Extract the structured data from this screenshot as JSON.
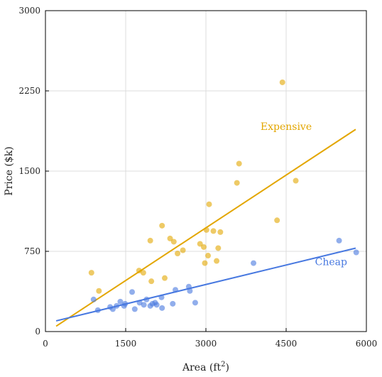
{
  "chart_data": {
    "type": "scatter",
    "xlabel": "Area (ft",
    "xlabel_sup": "2",
    "xlabel_close": ")",
    "ylabel": "Price ($k)",
    "xlim": [
      0,
      6000
    ],
    "ylim": [
      0,
      3000
    ],
    "xticks": [
      0,
      1500,
      3000,
      4500,
      6000
    ],
    "yticks": [
      0,
      750,
      1500,
      2250,
      3000
    ],
    "grid": true,
    "series": [
      {
        "name": "Expensive",
        "color": "#E3A600",
        "label_at": [
          4500,
          1885
        ],
        "trend": [
          [
            200,
            50
          ],
          [
            5800,
            1890
          ]
        ],
        "points": [
          [
            860,
            550
          ],
          [
            1000,
            380
          ],
          [
            1750,
            570
          ],
          [
            1830,
            550
          ],
          [
            1960,
            850
          ],
          [
            1980,
            470
          ],
          [
            2180,
            990
          ],
          [
            2230,
            500
          ],
          [
            2330,
            870
          ],
          [
            2400,
            840
          ],
          [
            2470,
            730
          ],
          [
            2570,
            760
          ],
          [
            2890,
            820
          ],
          [
            2960,
            790
          ],
          [
            2980,
            640
          ],
          [
            3010,
            950
          ],
          [
            3040,
            710
          ],
          [
            3060,
            1190
          ],
          [
            3140,
            940
          ],
          [
            3200,
            660
          ],
          [
            3230,
            780
          ],
          [
            3270,
            930
          ],
          [
            3580,
            1390
          ],
          [
            3620,
            1570
          ],
          [
            4330,
            1040
          ],
          [
            4430,
            2330
          ],
          [
            4680,
            1410
          ]
        ]
      },
      {
        "name": "Cheap",
        "color": "#4778E0",
        "label_at": [
          5340,
          620
        ],
        "trend": [
          [
            200,
            100
          ],
          [
            5800,
            780
          ]
        ],
        "points": [
          [
            900,
            300
          ],
          [
            980,
            200
          ],
          [
            1210,
            230
          ],
          [
            1260,
            210
          ],
          [
            1330,
            240
          ],
          [
            1400,
            280
          ],
          [
            1470,
            240
          ],
          [
            1490,
            260
          ],
          [
            1620,
            370
          ],
          [
            1670,
            210
          ],
          [
            1760,
            270
          ],
          [
            1840,
            250
          ],
          [
            1890,
            300
          ],
          [
            1960,
            240
          ],
          [
            2000,
            260
          ],
          [
            2050,
            270
          ],
          [
            2080,
            250
          ],
          [
            2170,
            320
          ],
          [
            2180,
            220
          ],
          [
            2380,
            260
          ],
          [
            2430,
            390
          ],
          [
            2680,
            420
          ],
          [
            2700,
            380
          ],
          [
            2800,
            270
          ],
          [
            3890,
            640
          ],
          [
            5490,
            850
          ],
          [
            5810,
            740
          ]
        ]
      }
    ]
  }
}
